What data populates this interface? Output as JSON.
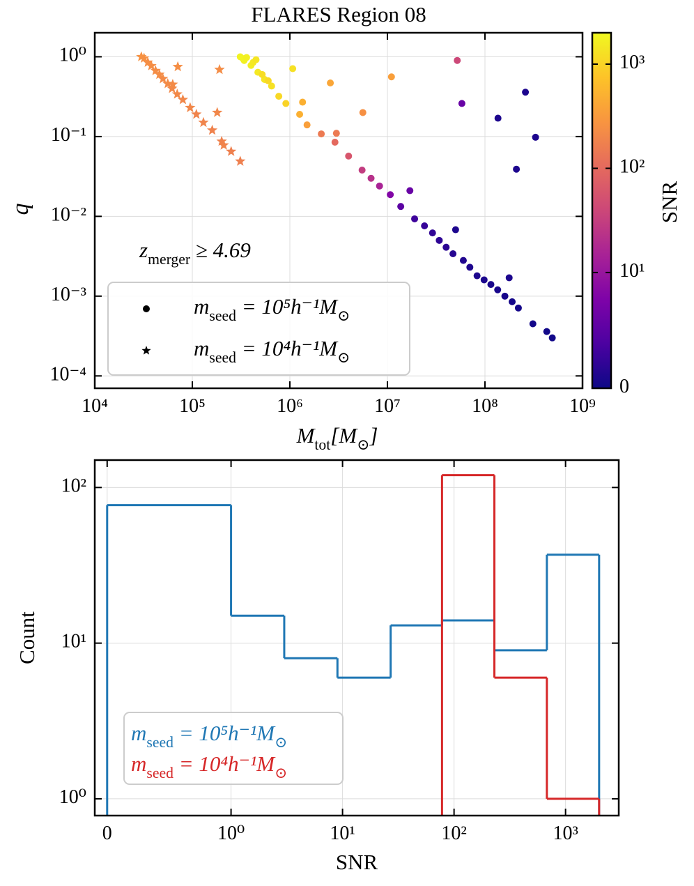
{
  "chart_data": [
    {
      "type": "scatter",
      "title": "FLARES Region 08",
      "xlabel": "M_{tot}[M_{⊙}]",
      "ylabel": "q",
      "annotation": "z_{merger} ≥ 4.69",
      "xscale": "log",
      "yscale": "log",
      "xlim": [
        10000,
        1000000000
      ],
      "ylim": [
        7e-05,
        2
      ],
      "xticks": [
        {
          "value": 10000,
          "label": "10⁴"
        },
        {
          "value": 100000,
          "label": "10⁵"
        },
        {
          "value": 1000000,
          "label": "10⁶"
        },
        {
          "value": 10000000,
          "label": "10⁷"
        },
        {
          "value": 100000000,
          "label": "10⁸"
        },
        {
          "value": 1000000000,
          "label": "10⁹"
        }
      ],
      "yticks": [
        {
          "value": 0.0001,
          "label": "10⁻⁴"
        },
        {
          "value": 0.001,
          "label": "10⁻³"
        },
        {
          "value": 0.01,
          "label": "10⁻²"
        },
        {
          "value": 0.1,
          "label": "10⁻¹"
        },
        {
          "value": 1,
          "label": "10⁰"
        }
      ],
      "grid": true,
      "legend": "lower left",
      "colormap": "plasma",
      "colorbar_label": "SNR",
      "cscale": "symlog",
      "linthresh": 10,
      "clim": [
        0,
        2000
      ],
      "cticks": [
        0,
        {
          "value": 10,
          "label": "10¹"
        },
        {
          "value": 100,
          "label": "10²"
        },
        {
          "value": 1000,
          "label": "10³"
        }
      ],
      "series": [
        {
          "name": "m_{seed} = 10⁵h⁻¹M_{⊙}",
          "marker": "o",
          "x": [
            310000,
            340000,
            400000,
            470000,
            550000,
            650000,
            770000,
            910000,
            1260000,
            1500000,
            2100000,
            2900000,
            4000000,
            5500000,
            8300000,
            10700000,
            13700000,
            19000000,
            24000000,
            34000000,
            47000000,
            60000000,
            83000000,
            115000000,
            160000000,
            220000000,
            310000000,
            430000000,
            490000000,
            1070000,
            2600000,
            1350000,
            3000000,
            5600000,
            11000000,
            52000000,
            58000000,
            136000000,
            260000000,
            330000000,
            210000000,
            17000000,
            50000000,
            177000000,
            330000,
            360000,
            420000,
            450000,
            520000,
            600000,
            6800000,
            29000000,
            40000000,
            70000000,
            98000000,
            135000000,
            190000000
          ],
          "values": [
            1.0,
            0.9,
            0.78,
            0.64,
            0.52,
            0.43,
            0.32,
            0.26,
            0.19,
            0.14,
            0.108,
            0.085,
            0.057,
            0.038,
            0.024,
            0.0187,
            0.0133,
            0.0093,
            0.0076,
            0.005,
            0.0034,
            0.0028,
            0.0018,
            0.0014,
            0.001,
            0.00071,
            0.00045,
            0.00036,
            0.0003,
            0.71,
            0.47,
            0.27,
            0.11,
            0.2,
            0.56,
            0.9,
            0.26,
            0.17,
            0.36,
            0.098,
            0.039,
            0.021,
            0.0068,
            0.0017,
            0.95,
            0.98,
            0.85,
            0.92,
            0.6,
            0.5,
            0.03,
            0.0062,
            0.0041,
            0.0023,
            0.0016,
            0.0012,
            0.00085
          ],
          "c": [
            1800,
            1700,
            1600,
            1500,
            1400,
            1300,
            1100,
            1000,
            500,
            350,
            150,
            100,
            60,
            30,
            15,
            8,
            5,
            3,
            2.5,
            2,
            1.5,
            1.2,
            1,
            0.8,
            0.6,
            0.5,
            0.4,
            0.3,
            0.3,
            1300,
            400,
            500,
            150,
            250,
            350,
            40,
            6,
            1,
            1,
            1,
            1,
            6,
            1,
            1,
            1800,
            1700,
            1500,
            1400,
            1200,
            1100,
            22,
            2.2,
            1.8,
            1.1,
            0.9,
            0.7,
            0.5
          ]
        },
        {
          "name": "m_{seed} = 10⁴h⁻¹M_{⊙}",
          "marker": "*",
          "x": [
            30000,
            32000,
            35000,
            38000,
            42000,
            46000,
            50000,
            56000,
            62000,
            70000,
            80000,
            95000,
            110000,
            130000,
            160000,
            200000,
            250000,
            310000,
            71000,
            190000,
            63000,
            180000,
            210000
          ],
          "values": [
            1.0,
            0.96,
            0.85,
            0.77,
            0.67,
            0.6,
            0.53,
            0.46,
            0.4,
            0.34,
            0.29,
            0.23,
            0.19,
            0.15,
            0.12,
            0.087,
            0.065,
            0.049,
            0.75,
            0.69,
            0.45,
            0.2,
            0.078
          ],
          "c": [
            260,
            250,
            240,
            240,
            230,
            230,
            220,
            220,
            210,
            210,
            200,
            200,
            190,
            190,
            180,
            180,
            170,
            170,
            240,
            230,
            220,
            200,
            190
          ]
        }
      ]
    },
    {
      "type": "histogram",
      "xlabel": "SNR",
      "ylabel": "Count",
      "xscale": "symlog",
      "linthresh": 1,
      "yscale": "log",
      "xlim": [
        -0.1,
        3000
      ],
      "ylim": [
        0.78,
        150
      ],
      "xticks": [
        0,
        {
          "value": 1,
          "label": "10⁰"
        },
        {
          "value": 10,
          "label": "10¹"
        },
        {
          "value": 100,
          "label": "10²"
        },
        {
          "value": 1000,
          "label": "10³"
        }
      ],
      "yticks": [
        {
          "value": 1,
          "label": "10⁰"
        },
        {
          "value": 10,
          "label": "10¹"
        },
        {
          "value": 100,
          "label": "10²"
        }
      ],
      "grid": true,
      "legend": "lower left",
      "bins": [
        0,
        1,
        3,
        9,
        27,
        78,
        230,
        680,
        2000
      ],
      "series": [
        {
          "name": "m_{seed} = 10⁵h⁻¹M_{⊙}",
          "color": "#1f77b4",
          "values": [
            77,
            15,
            8,
            6,
            13,
            14,
            9,
            37
          ]
        },
        {
          "name": "m_{seed} = 10⁴h⁻¹M_{⊙}",
          "color": "#d62728",
          "values": [
            0,
            0,
            0,
            0,
            0,
            120,
            6,
            1
          ]
        }
      ]
    }
  ]
}
